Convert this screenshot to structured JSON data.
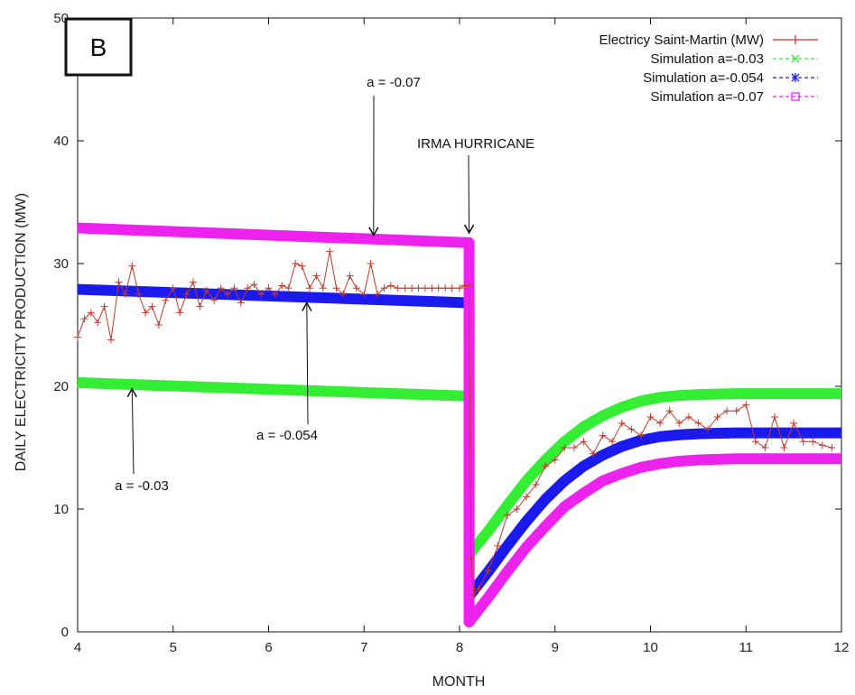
{
  "chart_data": {
    "type": "line",
    "panel_label": "B",
    "xlabel": "MONTH",
    "ylabel": "DAILY ELECTRICITY PRODUCTION (MW)",
    "xlim": [
      4,
      12
    ],
    "ylim": [
      0,
      50
    ],
    "xticks": [
      4,
      5,
      6,
      7,
      8,
      9,
      10,
      11,
      12
    ],
    "yticks": [
      0,
      10,
      20,
      30,
      40,
      50
    ],
    "grid": false,
    "legend_position": "top-right",
    "series": [
      {
        "name": "Electricy Saint-Martin (MW)",
        "color": "#c0392b",
        "marker": "plus",
        "x": [
          4.0,
          4.07,
          4.14,
          4.21,
          4.28,
          4.35,
          4.43,
          4.5,
          4.57,
          4.64,
          4.71,
          4.78,
          4.85,
          4.92,
          5.0,
          5.07,
          5.14,
          5.21,
          5.28,
          5.35,
          5.43,
          5.5,
          5.57,
          5.64,
          5.71,
          5.78,
          5.85,
          5.92,
          6.0,
          6.07,
          6.14,
          6.21,
          6.28,
          6.35,
          6.43,
          6.5,
          6.57,
          6.64,
          6.71,
          6.78,
          6.85,
          6.92,
          7.0,
          7.07,
          7.14,
          7.21,
          7.28,
          7.35,
          7.43,
          7.5,
          7.57,
          7.64,
          7.71,
          7.78,
          7.85,
          7.92,
          8.0,
          8.05,
          8.1,
          8.12,
          8.15,
          8.2,
          8.3,
          8.4,
          8.5,
          8.6,
          8.7,
          8.8,
          8.9,
          9.0,
          9.1,
          9.2,
          9.3,
          9.4,
          9.5,
          9.6,
          9.7,
          9.8,
          9.9,
          10.0,
          10.1,
          10.2,
          10.3,
          10.4,
          10.5,
          10.6,
          10.7,
          10.8,
          10.9,
          11.0,
          11.1,
          11.2,
          11.3,
          11.4,
          11.5,
          11.6,
          11.7,
          11.8,
          11.9
        ],
        "y": [
          24,
          25.5,
          26,
          25.2,
          26.5,
          23.8,
          28.5,
          27.5,
          29.8,
          27.5,
          26,
          26.5,
          25,
          27,
          28,
          26,
          27.5,
          28.5,
          26.5,
          27.8,
          27,
          28,
          27.5,
          28,
          26.8,
          28,
          28.3,
          27.5,
          28,
          27.5,
          28.2,
          28,
          30,
          29.8,
          28,
          29,
          28,
          31,
          28,
          27.5,
          29,
          28,
          27.5,
          30,
          27.5,
          28,
          28.2,
          28,
          28,
          28,
          28,
          28,
          28,
          28,
          28,
          28,
          28,
          28.2,
          28.2,
          6,
          3,
          3.5,
          5,
          7,
          9.5,
          10,
          11,
          12,
          13.5,
          14,
          15,
          15,
          15.5,
          14.5,
          16,
          15.5,
          17,
          16.5,
          16,
          17.5,
          17,
          18,
          17,
          17.5,
          17,
          16.5,
          17.5,
          18,
          18,
          18.5,
          15.5,
          15,
          17.5,
          15,
          17,
          15.5,
          15.5,
          15.2,
          15
        ]
      },
      {
        "name": "Simulation a=-0.03",
        "color": "#33ee33",
        "marker": "x",
        "x": [
          4.0,
          8.1,
          8.1,
          8.3,
          8.5,
          8.7,
          8.9,
          9.1,
          9.3,
          9.5,
          9.7,
          9.9,
          10.1,
          10.3,
          10.5,
          10.7,
          10.9,
          11.1,
          11.3,
          11.5,
          11.7,
          11.9,
          12.0
        ],
        "y": [
          20.3,
          19.2,
          6.3,
          8.2,
          10.3,
          12.3,
          14.0,
          15.5,
          16.7,
          17.6,
          18.3,
          18.8,
          19.1,
          19.25,
          19.33,
          19.37,
          19.4,
          19.4,
          19.4,
          19.4,
          19.4,
          19.4,
          19.4
        ]
      },
      {
        "name": "Simulation a=-0.054",
        "color": "#1a1aee",
        "marker": "star",
        "x": [
          4.0,
          8.1,
          8.1,
          8.3,
          8.5,
          8.7,
          8.9,
          9.1,
          9.3,
          9.5,
          9.7,
          9.9,
          10.1,
          10.3,
          10.5,
          10.7,
          10.9,
          11.1,
          11.3,
          11.5,
          11.7,
          11.9,
          12.0
        ],
        "y": [
          27.9,
          26.8,
          2.9,
          4.9,
          7.0,
          9.0,
          10.8,
          12.3,
          13.5,
          14.4,
          15.1,
          15.6,
          15.9,
          16.05,
          16.13,
          16.18,
          16.2,
          16.2,
          16.2,
          16.2,
          16.2,
          16.2,
          16.2
        ]
      },
      {
        "name": "Simulation a=-0.07",
        "color": "#ee22ee",
        "marker": "square",
        "x": [
          4.0,
          8.1,
          8.1,
          8.3,
          8.5,
          8.7,
          8.9,
          9.1,
          9.3,
          9.5,
          9.7,
          9.9,
          10.1,
          10.3,
          10.5,
          10.7,
          10.9,
          11.1,
          11.3,
          11.5,
          11.7,
          11.9,
          12.0
        ],
        "y": [
          32.9,
          31.7,
          0.8,
          2.8,
          4.9,
          6.9,
          8.6,
          10.2,
          11.3,
          12.3,
          12.9,
          13.4,
          13.7,
          13.9,
          14.0,
          14.05,
          14.1,
          14.1,
          14.1,
          14.1,
          14.1,
          14.1,
          14.1
        ]
      }
    ],
    "annotations": [
      {
        "text": "a = -0.07",
        "arrow_to": [
          7.1,
          32.3
        ]
      },
      {
        "text": "IRMA HURRICANE",
        "arrow_to": [
          8.1,
          32.5
        ]
      },
      {
        "text": "a = -0.054",
        "arrow_to": [
          6.4,
          26.8
        ]
      },
      {
        "text": "a = -0.03",
        "arrow_to": [
          4.57,
          19.8
        ]
      }
    ]
  }
}
